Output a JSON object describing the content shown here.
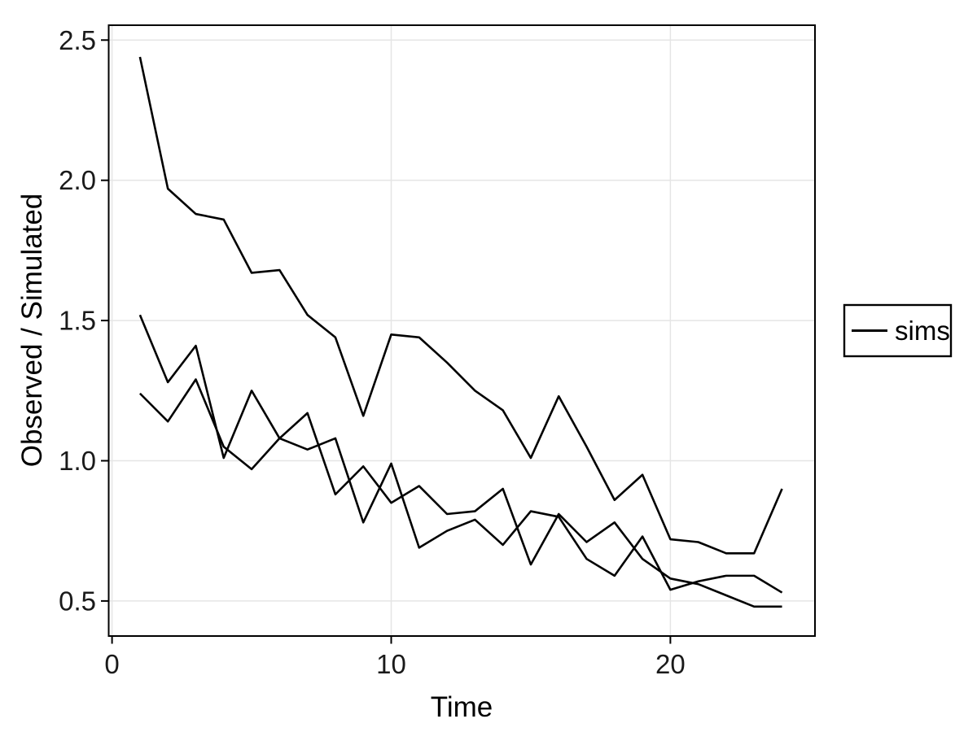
{
  "chart_data": {
    "type": "line",
    "title": "",
    "xlabel": "Time",
    "ylabel": "Observed / Simulated",
    "legend": {
      "label": "sims",
      "position": "right"
    },
    "line_color": "#000000",
    "grid_color": "#E5E5E5",
    "grid": true,
    "x": [
      1,
      2,
      3,
      4,
      5,
      6,
      7,
      8,
      9,
      10,
      11,
      12,
      13,
      14,
      15,
      16,
      17,
      18,
      19,
      20,
      21,
      22,
      23,
      24
    ],
    "series": [
      {
        "name": "sims",
        "values": [
          2.44,
          1.97,
          1.88,
          1.86,
          1.67,
          1.68,
          1.52,
          1.44,
          1.16,
          1.45,
          1.44,
          1.35,
          1.25,
          1.18,
          1.01,
          1.23,
          1.05,
          0.86,
          0.95,
          0.72,
          0.71,
          0.67,
          0.67,
          0.9
        ]
      },
      {
        "name": "sims",
        "values": [
          1.52,
          1.28,
          1.41,
          1.01,
          1.25,
          1.08,
          1.17,
          0.88,
          0.98,
          0.85,
          0.91,
          0.81,
          0.82,
          0.9,
          0.63,
          0.81,
          0.71,
          0.78,
          0.65,
          0.58,
          0.56,
          0.52,
          0.48,
          0.48
        ]
      },
      {
        "name": "sims",
        "values": [
          1.24,
          1.14,
          1.29,
          1.05,
          0.97,
          1.08,
          1.04,
          1.08,
          0.78,
          0.99,
          0.69,
          0.75,
          0.79,
          0.7,
          0.82,
          0.8,
          0.65,
          0.59,
          0.73,
          0.54,
          0.57,
          0.59,
          0.59,
          0.53
        ]
      }
    ],
    "xlim": [
      -0.12,
      25.18
    ],
    "ylim": [
      0.375,
      2.553
    ],
    "xticks": [
      0,
      10,
      20
    ],
    "xtick_labels": [
      "0",
      "10",
      "20"
    ],
    "yticks": [
      0.5,
      1.0,
      1.5,
      2.0,
      2.5
    ],
    "ytick_labels": [
      "0.5",
      "1.0",
      "1.5",
      "2.0",
      "2.5"
    ]
  }
}
